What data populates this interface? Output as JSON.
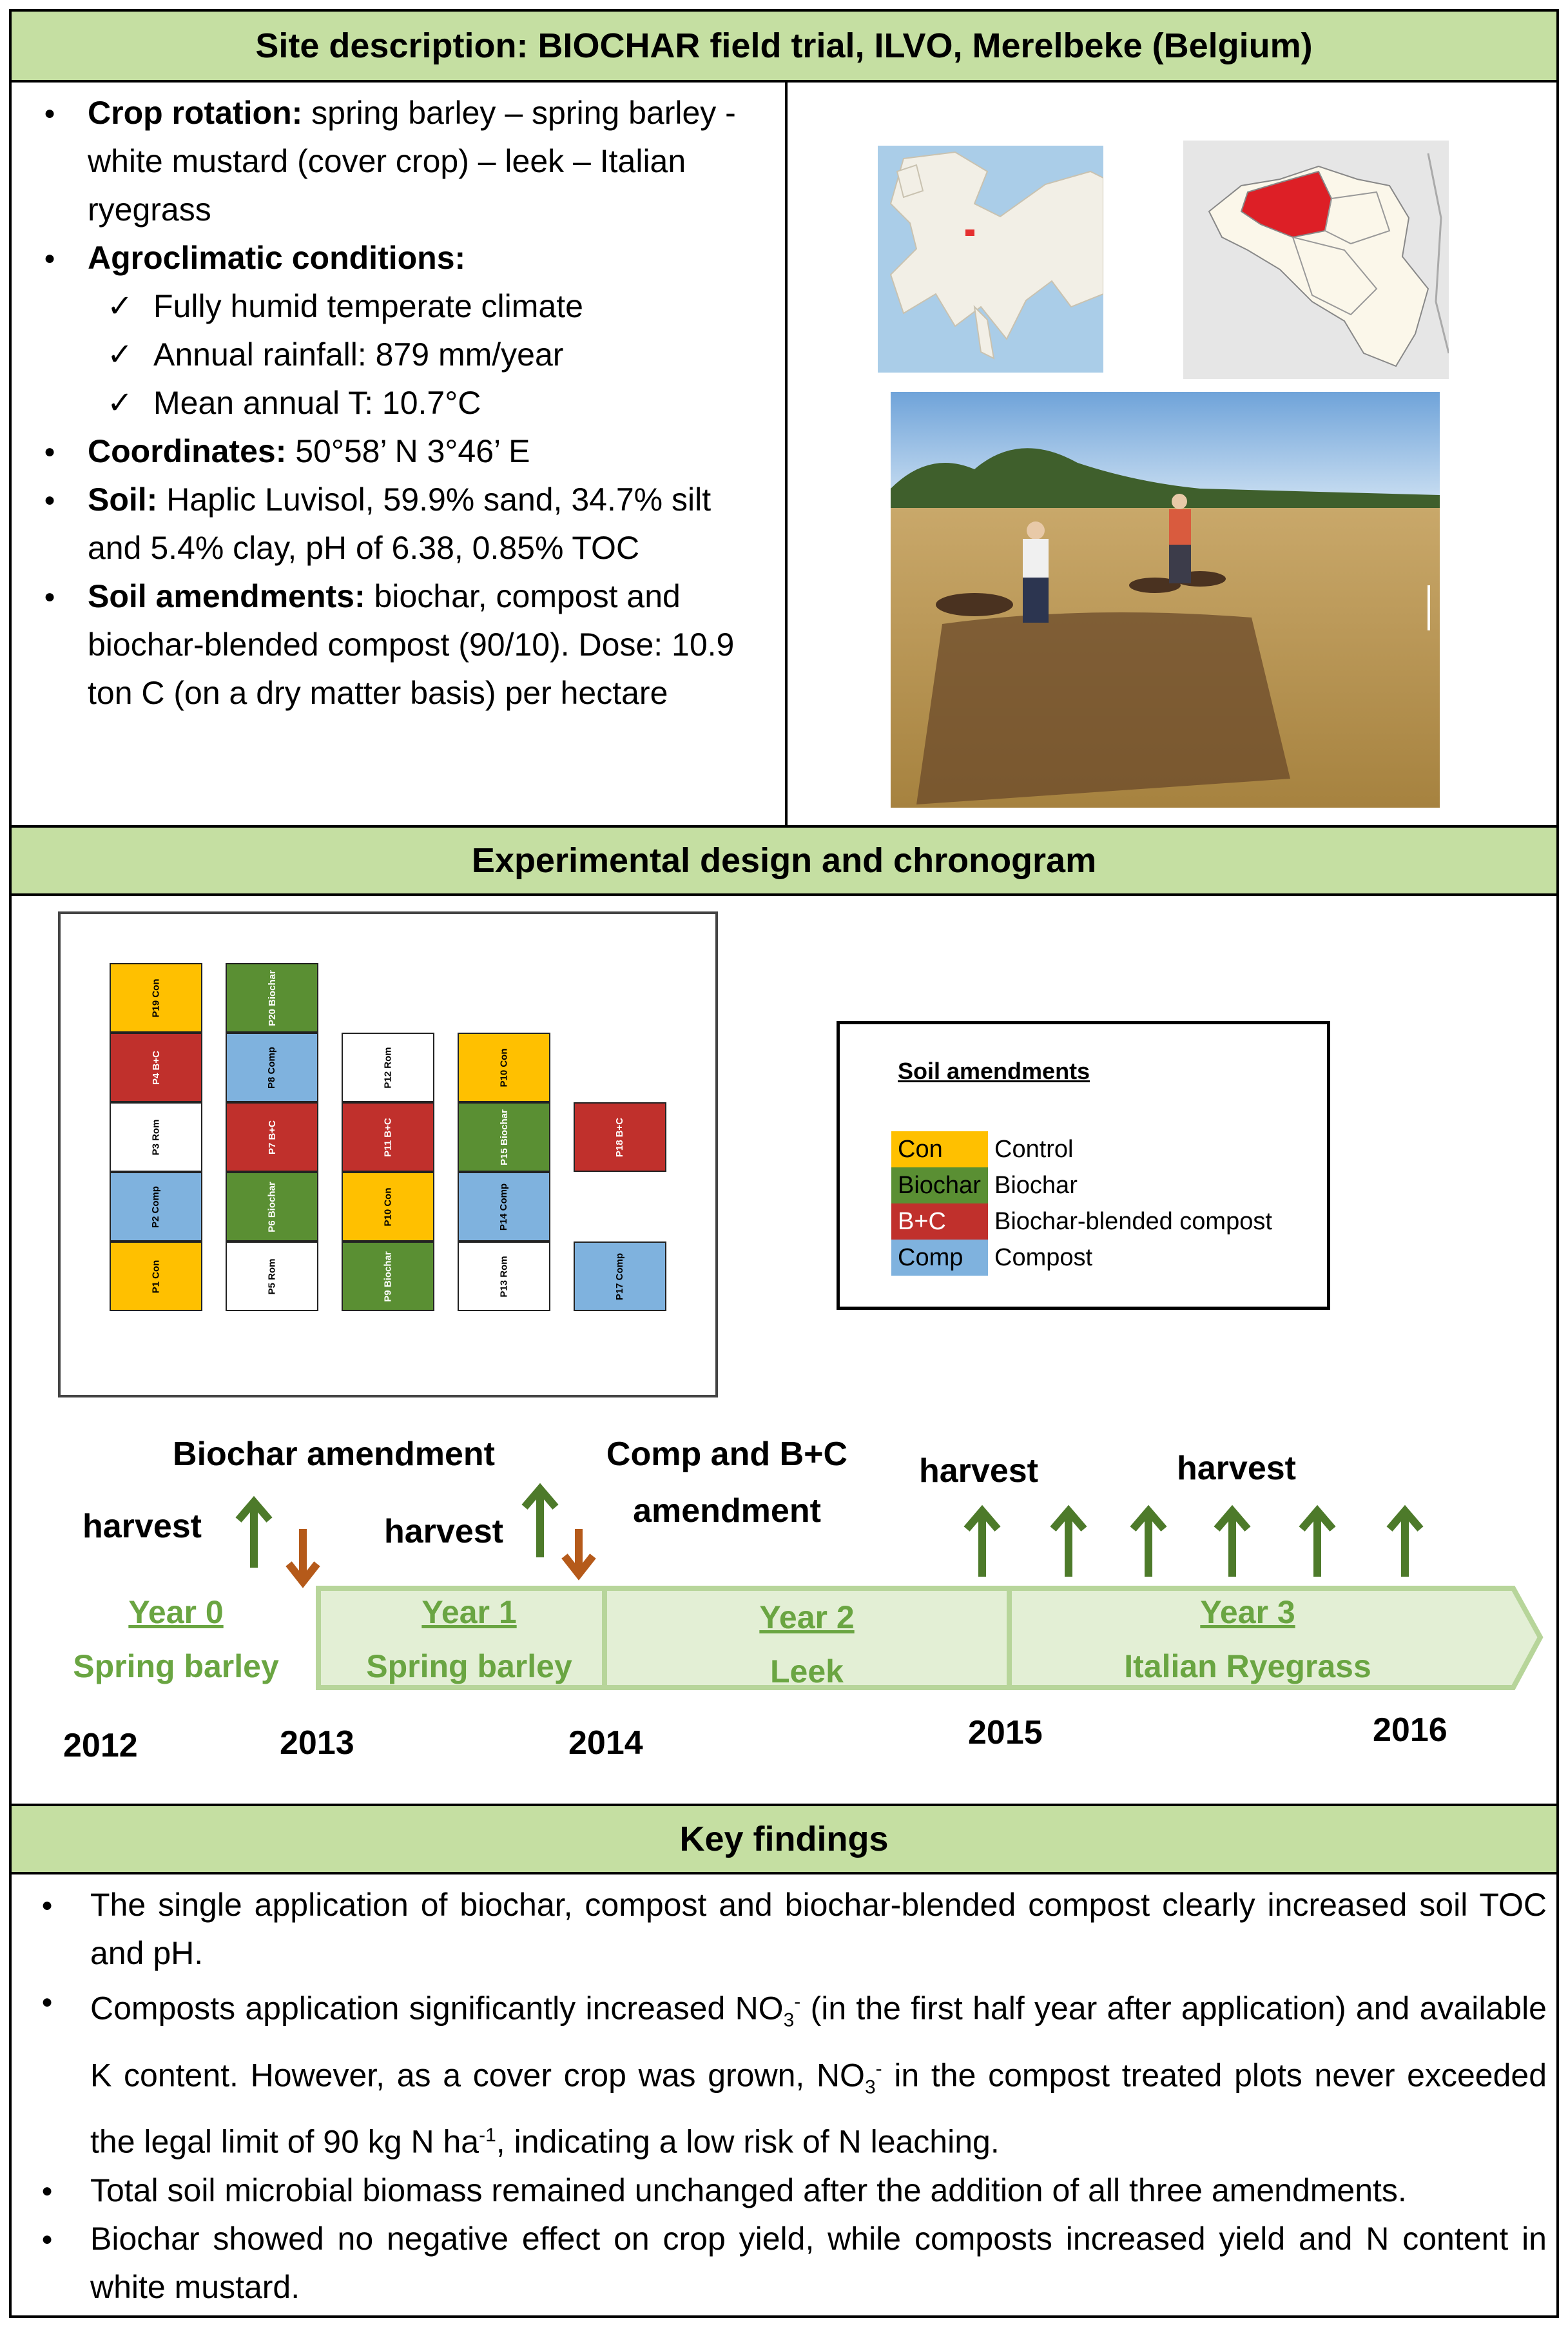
{
  "site": {
    "title": "Site description: BIOCHAR field trial, ILVO, Merelbeke (Belgium)",
    "crop_label": "Crop rotation:",
    "crop_text": " spring barley – spring barley -white mustard (cover crop) – leek – Italian ryegrass",
    "agro_label": "Agroclimatic conditions:",
    "agro_items": [
      "Fully humid temperate climate",
      "Annual rainfall: 879 mm/year",
      "Mean annual T: 10.7°C"
    ],
    "coord_label": "Coordinates:",
    "coord_text": " 50°58’ N 3°46’ E",
    "soil_label": "Soil:",
    "soil_text": " Haplic Luvisol, 59.9% sand, 34.7% silt and 5.4% clay, pH of 6.38, 0.85% TOC",
    "amend_label": "Soil amendments:",
    "amend_text": " biochar, compost and biochar-blended compost (90/10). Dose: 10.9 ton C (on a dry matter basis) per hectare"
  },
  "design": {
    "title": "Experimental design and chronogram",
    "legend_title": "Soil amendments",
    "legend": [
      {
        "code": "Con",
        "label": "Control",
        "color": "#ffc000"
      },
      {
        "code": "Biochar",
        "label": "Biochar",
        "color": "#5a8f33"
      },
      {
        "code": "B+C",
        "label": "Biochar-blended compost",
        "color": "#c0302c"
      },
      {
        "code": "Comp",
        "label": "Compost",
        "color": "#7fb2de"
      }
    ],
    "plots": [
      {
        "id": "P19 Con",
        "t": "con"
      },
      {
        "id": "P4 B+C",
        "t": "bc"
      },
      {
        "id": "P3 Rom",
        "t": "rom"
      },
      {
        "id": "P2 Comp",
        "t": "comp"
      },
      {
        "id": "P1 Con",
        "t": "con"
      },
      {
        "id": "P20 Biochar",
        "t": "bio"
      },
      {
        "id": "P8 Comp",
        "t": "comp"
      },
      {
        "id": "P7 B+C",
        "t": "bc"
      },
      {
        "id": "P6 Biochar",
        "t": "bio"
      },
      {
        "id": "P5 Rom",
        "t": "rom"
      },
      {
        "id": "P12 Rom",
        "t": "rom"
      },
      {
        "id": "P11 B+C",
        "t": "bc"
      },
      {
        "id": "P10 Con",
        "t": "con"
      },
      {
        "id": "P9 Biochar",
        "t": "bio"
      },
      {
        "id": "P10 Con",
        "t": "con"
      },
      {
        "id": "P15 Biochar",
        "t": "bio"
      },
      {
        "id": "P14 Comp",
        "t": "comp"
      },
      {
        "id": "P13 Rom",
        "t": "rom"
      },
      {
        "id": "P18 B+C",
        "t": "bc"
      },
      {
        "id": "P17 Comp",
        "t": "comp"
      }
    ],
    "timeline": {
      "ann_biochar": "Biochar amendment",
      "ann_compbc": "Comp and B+C amendment",
      "harvest": "harvest",
      "years": [
        "2012",
        "2013",
        "2014",
        "2015",
        "2016"
      ],
      "stages": [
        {
          "year": "Year 0",
          "crop": "Spring barley"
        },
        {
          "year": "Year 1",
          "crop": "Spring barley"
        },
        {
          "year": "Year 2",
          "crop": "Leek"
        },
        {
          "year": "Year 3",
          "crop": "Italian Ryegrass"
        }
      ]
    }
  },
  "findings": {
    "title": "Key findings",
    "f1": "The single application of biochar, compost and biochar-blended compost clearly increased soil TOC and pH.",
    "f2a": "Composts application significantly increased NO",
    "f2b": "3",
    "f2c": "-",
    "f2d": " (in the first half year after application) and available K content. However, as a cover crop was grown, NO",
    "f2e": "3",
    "f2f": "-",
    "f2g": " in the compost treated plots never exceeded the legal limit of 90 kg N ha",
    "f2h": "-1",
    "f2i": ", indicating a low risk of N leaching.",
    "f3": "Total soil microbial biomass remained unchanged after the addition of all three amendments.",
    "f4": "Biochar showed no negative effect on crop yield, while composts increased yield and N content in white mustard."
  }
}
